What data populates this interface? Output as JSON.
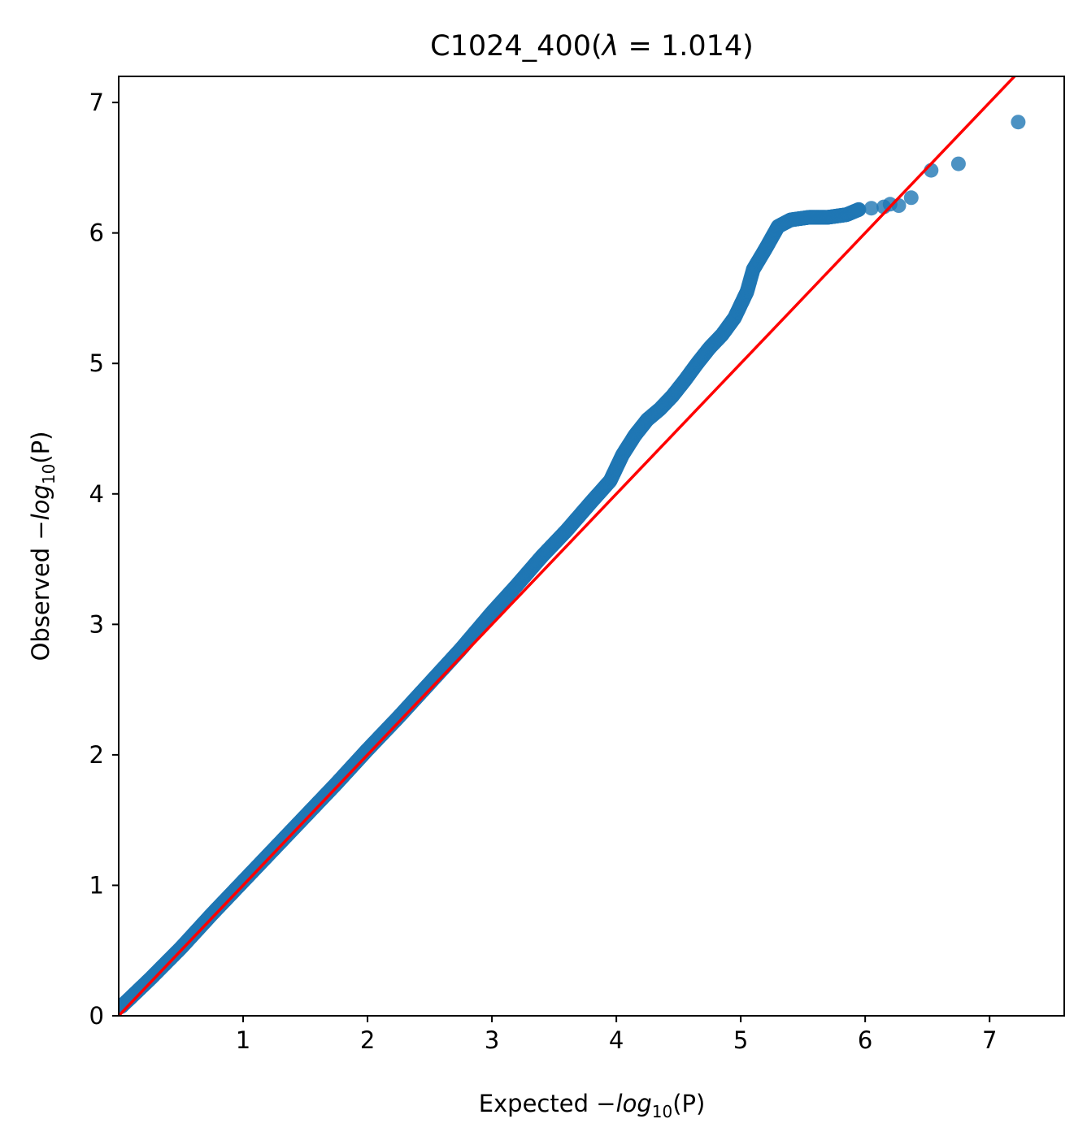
{
  "chart_data": {
    "type": "scatter",
    "title_parts": {
      "prefix": "C1024_400(",
      "lambda": "λ",
      "eq": " = 1.014",
      "suffix": ")"
    },
    "xlabel": {
      "prefix": "Expected −",
      "log": "log",
      "sub": "10",
      "arg": "(P)"
    },
    "ylabel": {
      "prefix": "Observed −",
      "log": "log",
      "sub": "10",
      "arg": "(P)"
    },
    "xlim": [
      0,
      7.6
    ],
    "ylim": [
      0,
      7.2
    ],
    "xticks": [
      "1",
      "2",
      "3",
      "4",
      "5",
      "6",
      "7"
    ],
    "yticks": [
      "0",
      "1",
      "2",
      "3",
      "4",
      "5",
      "6",
      "7"
    ],
    "point_color": "#1f77b4",
    "line_color": "#ff0000",
    "reference_line": {
      "slope": 1,
      "intercept": 0,
      "label": "y = x"
    },
    "series": [
      {
        "points": [
          [
            0.02,
            0.07
          ],
          [
            0.25,
            0.28
          ],
          [
            0.5,
            0.52
          ],
          [
            0.75,
            0.78
          ],
          [
            1.0,
            1.03
          ],
          [
            1.25,
            1.28
          ],
          [
            1.5,
            1.53
          ],
          [
            1.75,
            1.78
          ],
          [
            2.0,
            2.04
          ],
          [
            2.25,
            2.29
          ],
          [
            2.5,
            2.55
          ],
          [
            2.75,
            2.81
          ],
          [
            3.0,
            3.09
          ],
          [
            3.2,
            3.3
          ],
          [
            3.4,
            3.52
          ],
          [
            3.6,
            3.72
          ],
          [
            3.8,
            3.94
          ],
          [
            3.95,
            4.1
          ],
          [
            4.05,
            4.3
          ],
          [
            4.15,
            4.45
          ],
          [
            4.25,
            4.57
          ],
          [
            4.35,
            4.65
          ],
          [
            4.45,
            4.75
          ],
          [
            4.55,
            4.87
          ],
          [
            4.65,
            5.0
          ],
          [
            4.75,
            5.12
          ],
          [
            4.85,
            5.22
          ],
          [
            4.95,
            5.35
          ],
          [
            5.05,
            5.55
          ],
          [
            5.1,
            5.72
          ],
          [
            5.2,
            5.88
          ],
          [
            5.3,
            6.05
          ],
          [
            5.4,
            6.1
          ],
          [
            5.55,
            6.12
          ],
          [
            5.7,
            6.12
          ],
          [
            5.85,
            6.14
          ],
          [
            5.95,
            6.18
          ],
          [
            6.05,
            6.19
          ],
          [
            6.15,
            6.2
          ],
          [
            6.2,
            6.22
          ],
          [
            6.27,
            6.21
          ],
          [
            6.37,
            6.27
          ],
          [
            6.53,
            6.48
          ],
          [
            6.75,
            6.53
          ],
          [
            7.23,
            6.85
          ]
        ]
      }
    ]
  }
}
